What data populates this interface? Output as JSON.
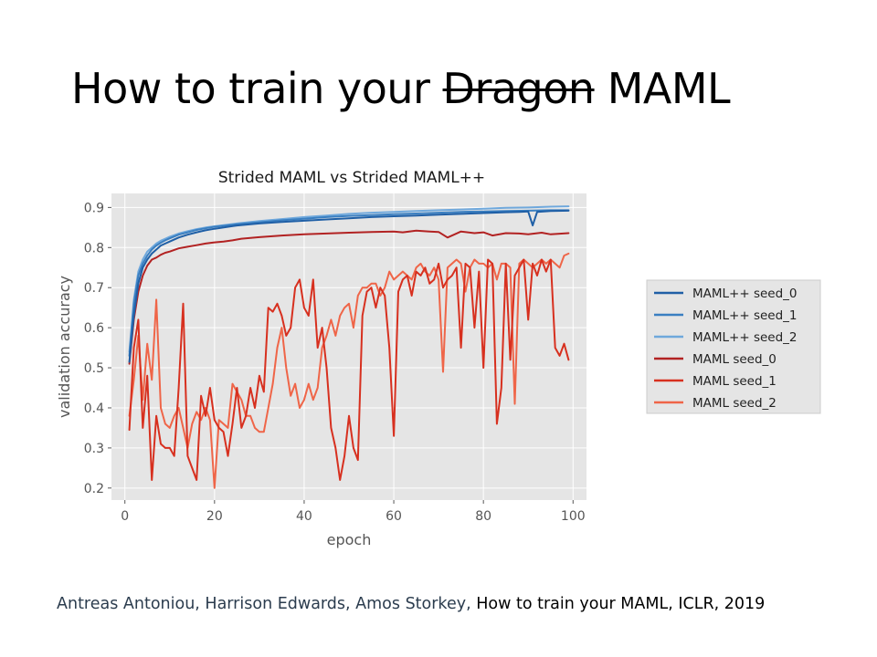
{
  "slide": {
    "title_before": "How to train your",
    "title_struck": "Dragon",
    "title_after": "MAML",
    "citation_authors": "Antreas Antoniou, Harrison Edwards, Amos Storkey,",
    "citation_paper": "How to train your MAML, ICLR, 2019"
  },
  "chart_data": {
    "type": "line",
    "title": "Strided MAML vs Strided MAML++",
    "xlabel": "epoch",
    "ylabel": "validation accuracy",
    "xlim": [
      -3,
      103
    ],
    "ylim": [
      0.17,
      0.935
    ],
    "xticks": [
      0,
      20,
      40,
      60,
      80,
      100
    ],
    "yticks": [
      0.2,
      0.3,
      0.4,
      0.5,
      0.6,
      0.7,
      0.8,
      0.9
    ],
    "grid": true,
    "legend_position": "outside-right",
    "colors": {
      "plot_bg": "#e5e5e5",
      "grid": "#ffffff",
      "tick_text": "#555555",
      "legend_bg": "#e5e5e5",
      "legend_border": "#cccccc"
    },
    "series": [
      {
        "name": "MAML++ seed_0",
        "color": "#1f5fa6",
        "x": [
          1,
          2,
          3,
          4,
          5,
          6,
          7,
          8,
          9,
          10,
          12,
          14,
          16,
          18,
          20,
          25,
          30,
          35,
          40,
          45,
          50,
          55,
          60,
          65,
          70,
          75,
          80,
          85,
          88,
          90,
          91,
          92,
          95,
          99
        ],
        "y": [
          0.515,
          0.63,
          0.71,
          0.75,
          0.77,
          0.785,
          0.795,
          0.805,
          0.81,
          0.815,
          0.825,
          0.832,
          0.838,
          0.843,
          0.847,
          0.855,
          0.86,
          0.864,
          0.867,
          0.87,
          0.873,
          0.876,
          0.878,
          0.88,
          0.882,
          0.884,
          0.886,
          0.888,
          0.889,
          0.89,
          0.855,
          0.889,
          0.891,
          0.892
        ]
      },
      {
        "name": "MAML++ seed_1",
        "color": "#3a7fc1",
        "x": [
          1,
          2,
          3,
          4,
          5,
          6,
          7,
          8,
          9,
          10,
          12,
          14,
          16,
          18,
          20,
          25,
          30,
          35,
          40,
          45,
          50,
          55,
          60,
          65,
          70,
          75,
          80,
          85,
          90,
          95,
          99
        ],
        "y": [
          0.53,
          0.66,
          0.73,
          0.76,
          0.78,
          0.795,
          0.805,
          0.812,
          0.818,
          0.823,
          0.832,
          0.838,
          0.844,
          0.848,
          0.852,
          0.858,
          0.863,
          0.868,
          0.872,
          0.876,
          0.879,
          0.881,
          0.883,
          0.885,
          0.887,
          0.889,
          0.89,
          0.891,
          0.892,
          0.893,
          0.893
        ]
      },
      {
        "name": "MAML++ seed_2",
        "color": "#6fa8dc",
        "x": [
          1,
          2,
          3,
          4,
          5,
          6,
          7,
          8,
          9,
          10,
          12,
          14,
          16,
          18,
          20,
          25,
          30,
          35,
          40,
          45,
          50,
          55,
          60,
          65,
          70,
          75,
          80,
          85,
          90,
          95,
          99
        ],
        "y": [
          0.54,
          0.67,
          0.74,
          0.77,
          0.79,
          0.8,
          0.81,
          0.817,
          0.822,
          0.827,
          0.835,
          0.841,
          0.846,
          0.85,
          0.853,
          0.86,
          0.866,
          0.871,
          0.876,
          0.88,
          0.884,
          0.887,
          0.889,
          0.891,
          0.893,
          0.895,
          0.897,
          0.899,
          0.9,
          0.902,
          0.903
        ]
      },
      {
        "name": "MAML seed_0",
        "color": "#b22222",
        "x": [
          1,
          2,
          3,
          4,
          5,
          6,
          7,
          8,
          9,
          10,
          12,
          14,
          16,
          18,
          20,
          22,
          24,
          26,
          28,
          30,
          35,
          40,
          45,
          50,
          55,
          60,
          62,
          65,
          68,
          70,
          72,
          75,
          78,
          80,
          82,
          85,
          88,
          90,
          93,
          95,
          99
        ],
        "y": [
          0.51,
          0.62,
          0.69,
          0.73,
          0.755,
          0.77,
          0.775,
          0.782,
          0.787,
          0.79,
          0.798,
          0.802,
          0.806,
          0.81,
          0.813,
          0.815,
          0.818,
          0.822,
          0.824,
          0.826,
          0.83,
          0.833,
          0.835,
          0.837,
          0.839,
          0.84,
          0.838,
          0.842,
          0.84,
          0.839,
          0.825,
          0.84,
          0.836,
          0.838,
          0.83,
          0.836,
          0.835,
          0.833,
          0.837,
          0.833,
          0.836
        ]
      },
      {
        "name": "MAML seed_1",
        "color": "#d7301f",
        "x": [
          1,
          2,
          3,
          4,
          5,
          6,
          7,
          8,
          9,
          10,
          11,
          12,
          13,
          14,
          15,
          16,
          17,
          18,
          19,
          20,
          21,
          22,
          23,
          24,
          25,
          26,
          27,
          28,
          29,
          30,
          31,
          32,
          33,
          34,
          35,
          36,
          37,
          38,
          39,
          40,
          41,
          42,
          43,
          44,
          45,
          46,
          47,
          48,
          49,
          50,
          51,
          52,
          53,
          54,
          55,
          56,
          57,
          58,
          59,
          60,
          61,
          62,
          63,
          64,
          65,
          66,
          67,
          68,
          69,
          70,
          71,
          72,
          73,
          74,
          75,
          76,
          77,
          78,
          79,
          80,
          81,
          82,
          83,
          84,
          85,
          86,
          87,
          88,
          89,
          90,
          91,
          92,
          93,
          94,
          95,
          96,
          97,
          98,
          99
        ],
        "y": [
          0.345,
          0.55,
          0.62,
          0.35,
          0.48,
          0.22,
          0.38,
          0.31,
          0.3,
          0.3,
          0.28,
          0.45,
          0.66,
          0.28,
          0.25,
          0.22,
          0.43,
          0.38,
          0.45,
          0.37,
          0.35,
          0.34,
          0.28,
          0.36,
          0.45,
          0.35,
          0.38,
          0.45,
          0.4,
          0.48,
          0.44,
          0.65,
          0.64,
          0.66,
          0.63,
          0.58,
          0.6,
          0.7,
          0.72,
          0.65,
          0.63,
          0.72,
          0.55,
          0.6,
          0.5,
          0.35,
          0.3,
          0.22,
          0.28,
          0.38,
          0.3,
          0.27,
          0.63,
          0.69,
          0.7,
          0.65,
          0.7,
          0.68,
          0.55,
          0.33,
          0.69,
          0.72,
          0.73,
          0.68,
          0.74,
          0.73,
          0.75,
          0.71,
          0.72,
          0.76,
          0.7,
          0.72,
          0.73,
          0.75,
          0.55,
          0.76,
          0.75,
          0.6,
          0.74,
          0.5,
          0.77,
          0.76,
          0.36,
          0.45,
          0.76,
          0.52,
          0.73,
          0.75,
          0.77,
          0.62,
          0.76,
          0.73,
          0.77,
          0.74,
          0.77,
          0.55,
          0.53,
          0.56,
          0.52
        ]
      },
      {
        "name": "MAML seed_2",
        "color": "#ef6548",
        "x": [
          1,
          2,
          3,
          4,
          5,
          6,
          7,
          8,
          9,
          10,
          11,
          12,
          13,
          14,
          15,
          16,
          17,
          18,
          19,
          20,
          21,
          22,
          23,
          24,
          25,
          26,
          27,
          28,
          29,
          30,
          31,
          32,
          33,
          34,
          35,
          36,
          37,
          38,
          39,
          40,
          41,
          42,
          43,
          44,
          45,
          46,
          47,
          48,
          49,
          50,
          51,
          52,
          53,
          54,
          55,
          56,
          57,
          58,
          59,
          60,
          61,
          62,
          63,
          64,
          65,
          66,
          67,
          68,
          69,
          70,
          71,
          72,
          73,
          74,
          75,
          76,
          77,
          78,
          79,
          80,
          81,
          82,
          83,
          84,
          85,
          86,
          87,
          88,
          89,
          90,
          91,
          92,
          93,
          94,
          95,
          96,
          97,
          98,
          99
        ],
        "y": [
          0.38,
          0.47,
          0.58,
          0.42,
          0.56,
          0.47,
          0.67,
          0.4,
          0.36,
          0.35,
          0.38,
          0.4,
          0.35,
          0.3,
          0.36,
          0.39,
          0.37,
          0.4,
          0.37,
          0.2,
          0.37,
          0.36,
          0.35,
          0.46,
          0.44,
          0.42,
          0.38,
          0.38,
          0.35,
          0.34,
          0.34,
          0.4,
          0.46,
          0.55,
          0.6,
          0.5,
          0.43,
          0.46,
          0.4,
          0.42,
          0.46,
          0.42,
          0.45,
          0.55,
          0.58,
          0.62,
          0.58,
          0.63,
          0.65,
          0.66,
          0.6,
          0.68,
          0.7,
          0.7,
          0.71,
          0.71,
          0.68,
          0.7,
          0.74,
          0.72,
          0.73,
          0.74,
          0.73,
          0.72,
          0.75,
          0.76,
          0.74,
          0.73,
          0.75,
          0.72,
          0.49,
          0.75,
          0.76,
          0.77,
          0.76,
          0.69,
          0.75,
          0.77,
          0.76,
          0.76,
          0.75,
          0.76,
          0.72,
          0.76,
          0.76,
          0.75,
          0.41,
          0.76,
          0.77,
          0.76,
          0.75,
          0.76,
          0.77,
          0.76,
          0.77,
          0.76,
          0.75,
          0.78,
          0.785
        ]
      }
    ]
  }
}
